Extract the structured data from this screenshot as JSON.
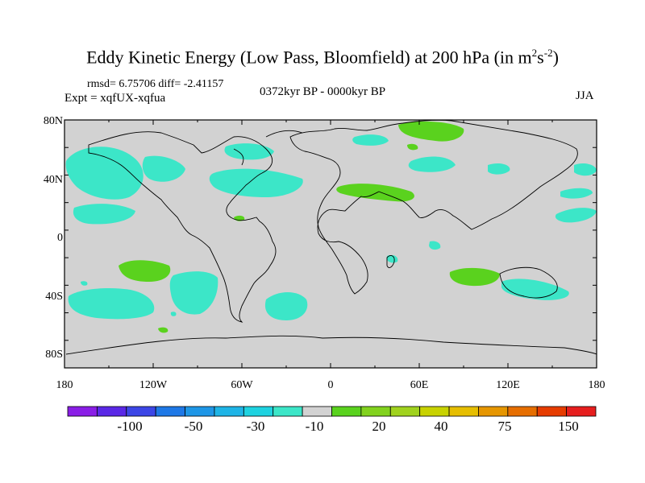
{
  "title": {
    "main": "Eddy Kinetic Energy (Low Pass, Bloomfield) at 200 hPa (in m",
    "sup1": "2",
    "mid": "s",
    "sup2": "-2",
    "end": ")"
  },
  "stats": "rmsd= 6.75706 diff= -2.41157",
  "experiment": "Expt = xqfUX-xqfua",
  "period": "0372kyr BP - 0000kyr BP",
  "season": "JJA",
  "lat_labels": [
    "80N",
    "40N",
    "0",
    "40S",
    "80S"
  ],
  "lon_labels": [
    "180",
    "120W",
    "60W",
    "0",
    "60E",
    "120E",
    "180"
  ],
  "colorbar": {
    "colors": [
      "#8a1ee6",
      "#5a28e6",
      "#3c46e6",
      "#1e78e6",
      "#1e96e6",
      "#1eb4e6",
      "#1ed2e0",
      "#3ce6c8",
      "#d2d2d2",
      "#5ad21e",
      "#82d21e",
      "#a0d21e",
      "#c8d200",
      "#e6be00",
      "#e69600",
      "#e66e00",
      "#e63c00",
      "#e61e1e"
    ],
    "labels": [
      "-100",
      "-50",
      "-30",
      "-10",
      "20",
      "40",
      "75",
      "150"
    ]
  },
  "fill_colors": {
    "background": "#d2d2d2",
    "negative": "#3ce6c8",
    "positive": "#5ad21e"
  }
}
